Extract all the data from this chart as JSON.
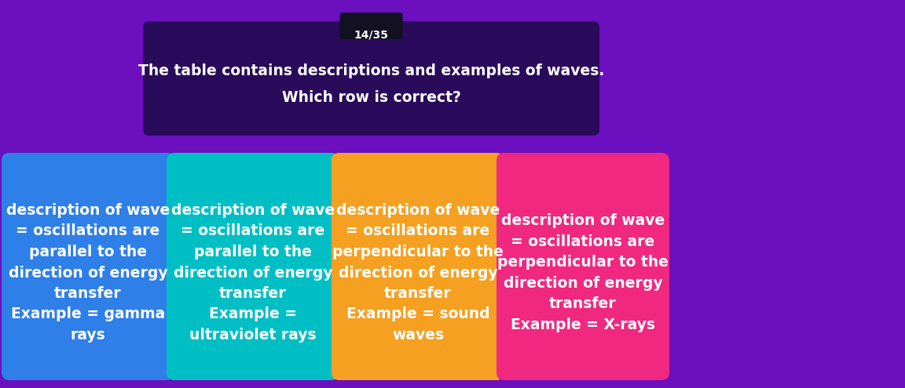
{
  "title_badge": "14/35",
  "question_line1": "The table contains descriptions and examples of waves.",
  "question_line2": "Which row is correct?",
  "bg_color": "#6B0FBF",
  "question_box_color": "#2A0A5A",
  "badge_color": "#111122",
  "badge_text_color": "#ffffff",
  "question_text_color": "#ffffff",
  "cards": [
    {
      "color": "#2E7FE8",
      "text": "description of wave\n= oscillations are\nparallel to the\ndirection of energy\ntransfer\nExample = gamma\nrays"
    },
    {
      "color": "#00BFC4",
      "text": "description of wave\n= oscillations are\nparallel to the\ndirection of energy\ntransfer\nExample =\nultraviolet rays"
    },
    {
      "color": "#F5A020",
      "text": "description of wave\n= oscillations are\nperpendicular to the\ndirection of energy\ntransfer\nExample = sound\nwaves"
    },
    {
      "color": "#F02880",
      "text": "description of wave\n= oscillations are\nperpendicular to the\ndirection of energy\ntransfer\nExample = X-rays"
    }
  ],
  "card_text_color": "#ffffff",
  "card_font_size": 13.5,
  "figsize": [
    11.52,
    4.95
  ],
  "dpi": 100
}
